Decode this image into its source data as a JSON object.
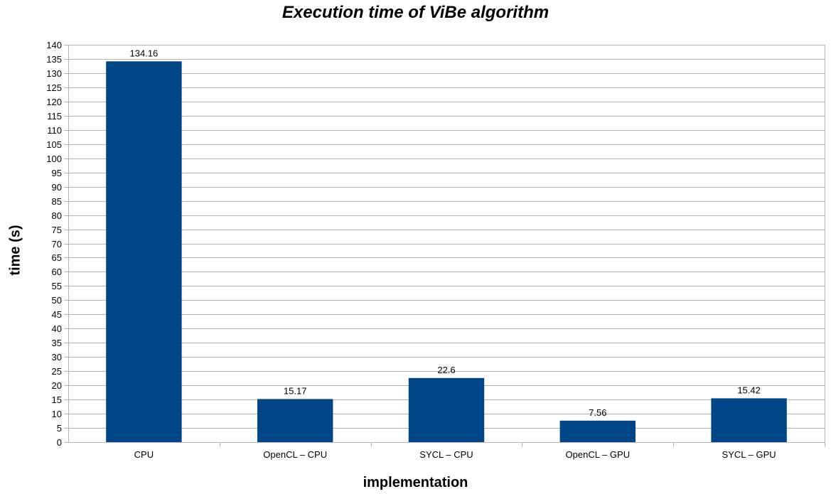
{
  "chart_data": {
    "type": "bar",
    "title": "Execution time of ViBe algorithm",
    "xlabel": "implementation",
    "ylabel": "time (s)",
    "categories": [
      "CPU",
      "OpenCL – CPU",
      "SYCL – CPU",
      "OpenCL – GPU",
      "SYCL – GPU"
    ],
    "values": [
      134.16,
      15.17,
      22.6,
      7.56,
      15.42
    ],
    "data_labels": [
      "134.16",
      "15.17",
      "22.6",
      "7.56",
      "15.42"
    ],
    "ylim": [
      0,
      140
    ],
    "ytick_step": 5,
    "grid": true,
    "legend": "none",
    "bar_color": "#004586",
    "grid_color": "#b3b3b3"
  }
}
